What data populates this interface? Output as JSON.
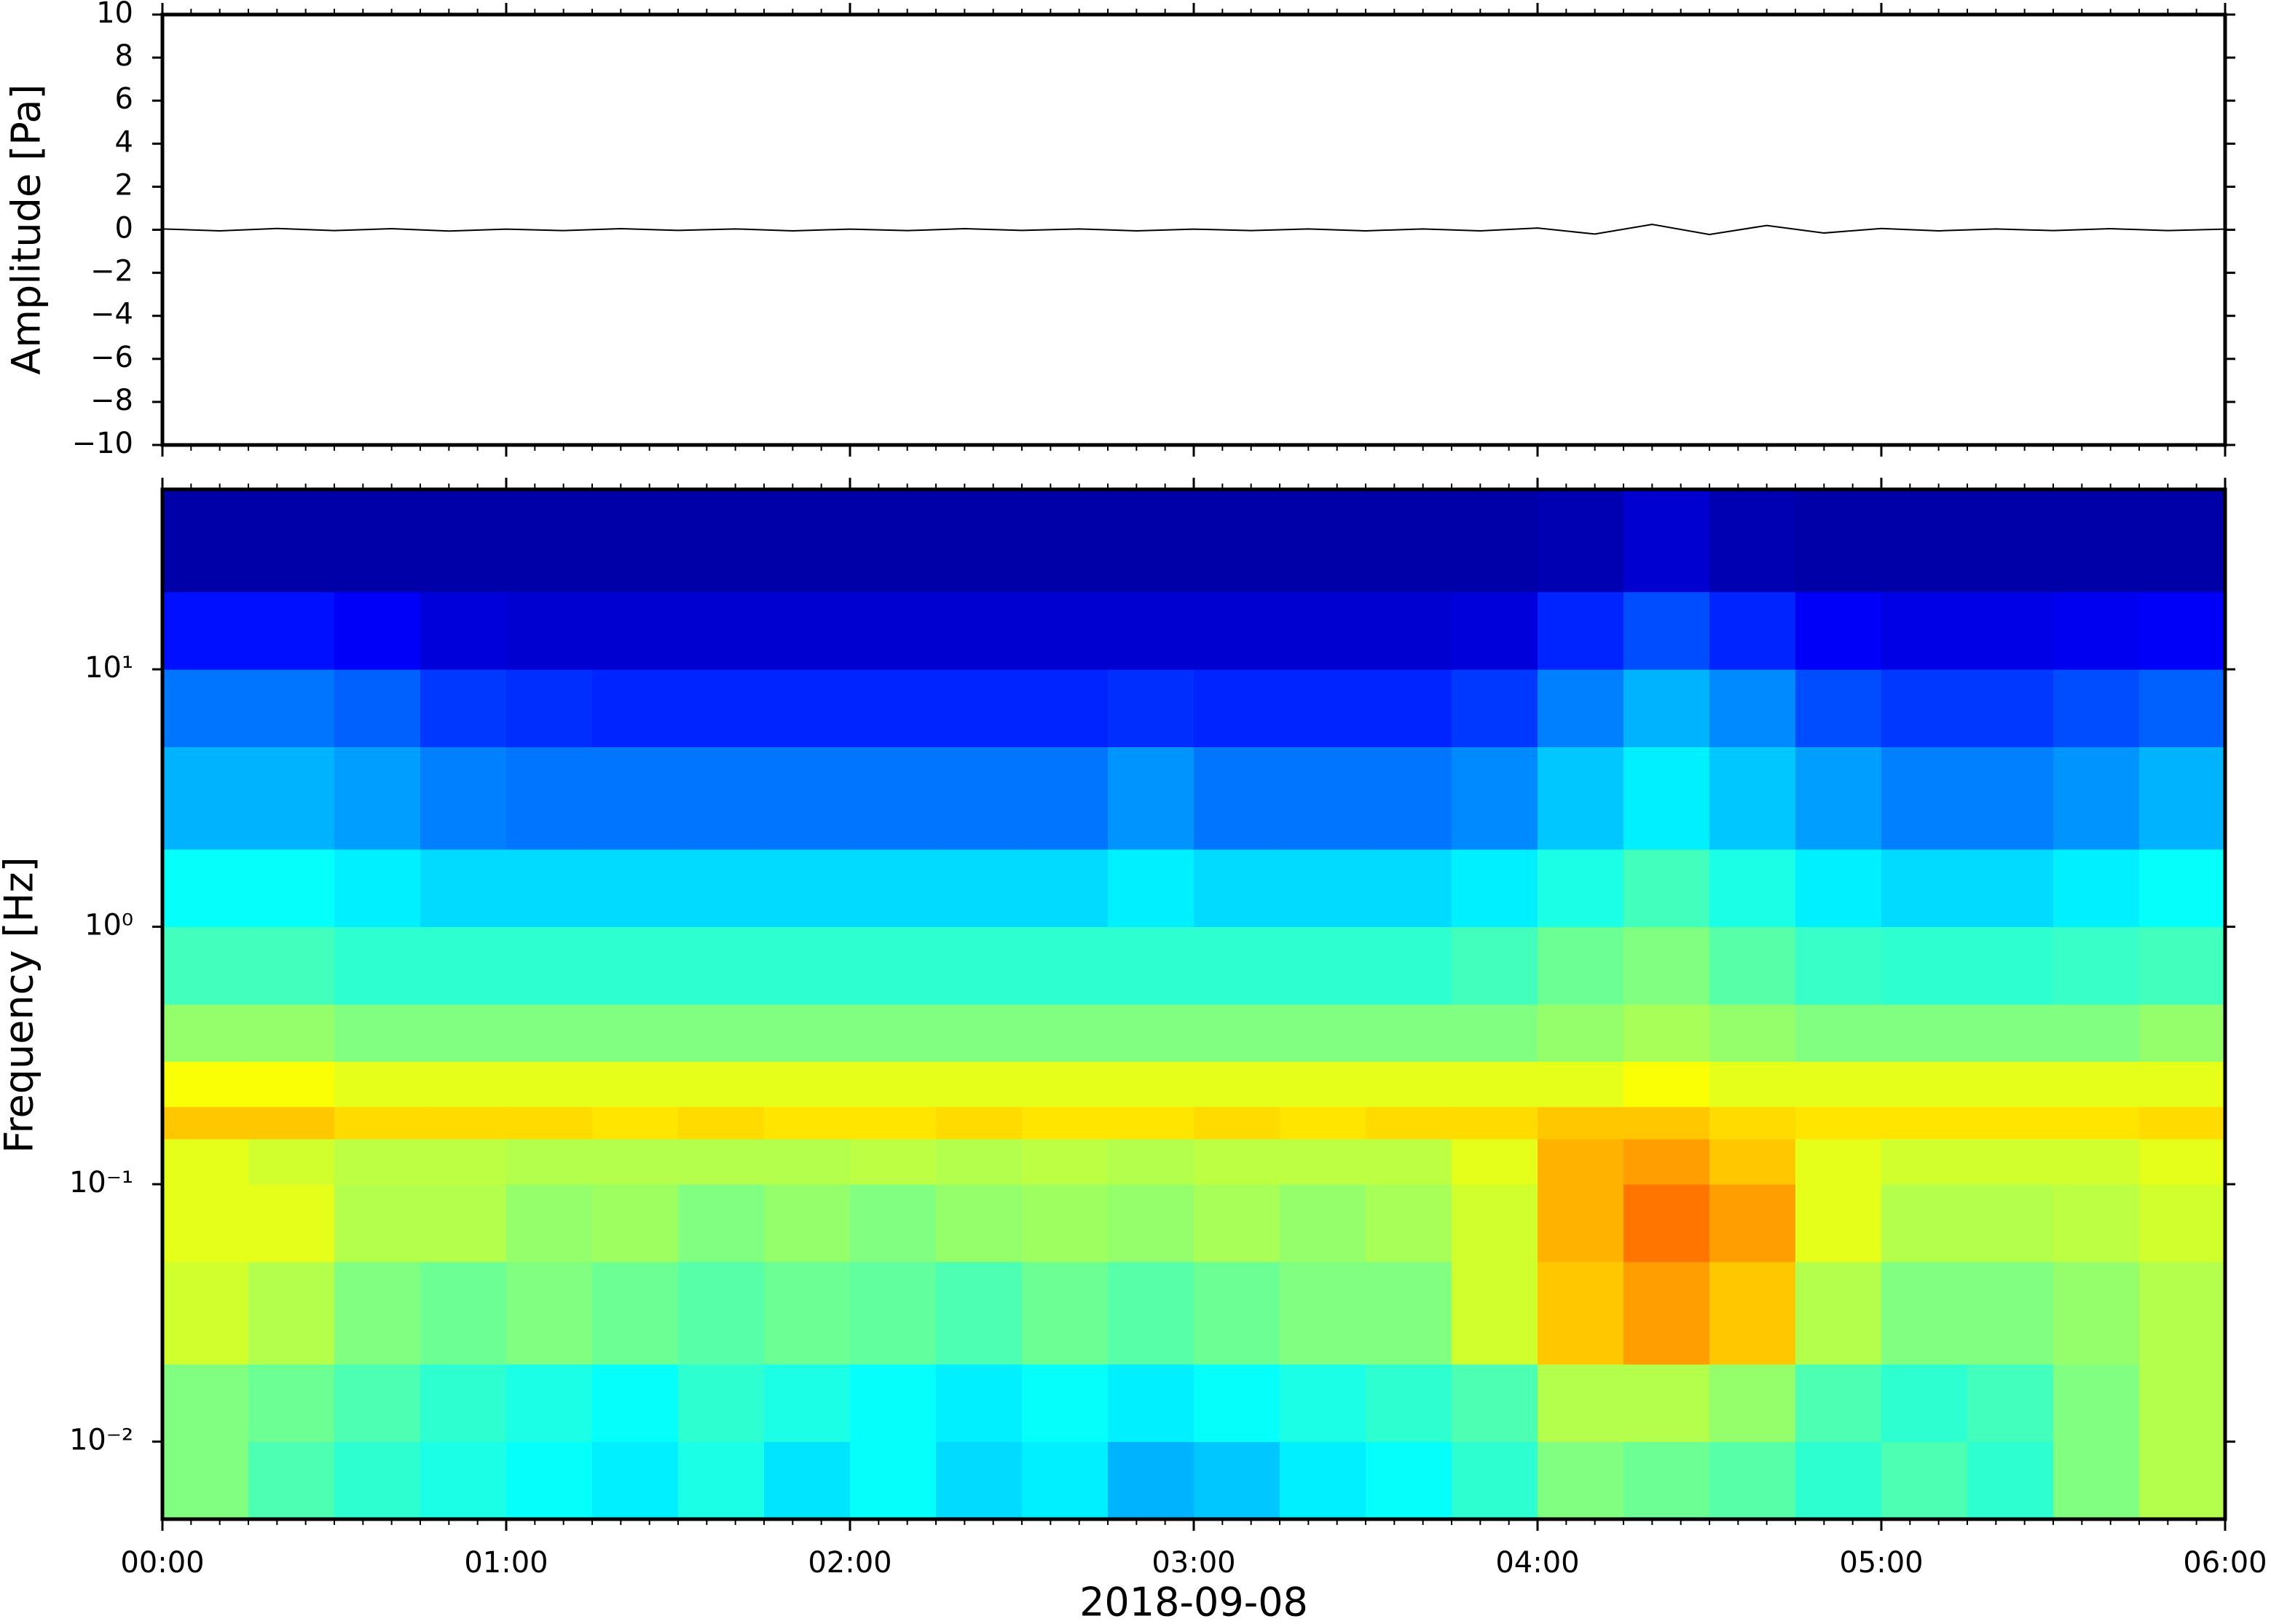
{
  "chart_data": [
    {
      "type": "line",
      "ylabel": "Amplitude [Pa]",
      "x": [
        0,
        10,
        20,
        30,
        40,
        50,
        60,
        70,
        80,
        90,
        100,
        110,
        120,
        130,
        140,
        150,
        160,
        170,
        180,
        190,
        200,
        210,
        220,
        230,
        240,
        250,
        260,
        270,
        280,
        290,
        300,
        310,
        320,
        330,
        340,
        350,
        360
      ],
      "series": [
        {
          "color": "#000000",
          "values": [
            0.04,
            -0.05,
            0.06,
            -0.04,
            0.05,
            -0.06,
            0.03,
            -0.04,
            0.05,
            -0.03,
            0.04,
            -0.05,
            0.03,
            -0.04,
            0.05,
            -0.03,
            0.04,
            -0.05,
            0.03,
            -0.04,
            0.04,
            -0.05,
            0.04,
            -0.05,
            0.08,
            -0.2,
            0.25,
            -0.22,
            0.2,
            -0.15,
            0.06,
            -0.05,
            0.04,
            -0.04,
            0.05,
            -0.04,
            0.03
          ]
        }
      ],
      "xlim": [
        0,
        360
      ],
      "xticks": [
        0,
        60,
        120,
        180,
        240,
        300,
        360
      ],
      "xminorticks": [
        5,
        10,
        15,
        20,
        25,
        30,
        35,
        40,
        45,
        50,
        55,
        65,
        70,
        75,
        80,
        85,
        90,
        95,
        100,
        105,
        110,
        115,
        125,
        130,
        135,
        140,
        145,
        150,
        155,
        160,
        165,
        170,
        175,
        185,
        190,
        195,
        200,
        205,
        210,
        215,
        220,
        225,
        230,
        235,
        245,
        250,
        255,
        260,
        265,
        270,
        275,
        280,
        285,
        290,
        295,
        305,
        310,
        315,
        320,
        325,
        330,
        335,
        340,
        345,
        350,
        355
      ],
      "ylim": [
        -10,
        10
      ],
      "yticks": [
        {
          "value": -10,
          "label": "−10"
        },
        {
          "value": -8,
          "label": "−8"
        },
        {
          "value": -6,
          "label": "−6"
        },
        {
          "value": -4,
          "label": "−4"
        },
        {
          "value": -2,
          "label": "−2"
        },
        0,
        2,
        4,
        6,
        8,
        10
      ]
    },
    {
      "type": "heatmap",
      "ylabel": "Frequency [Hz]",
      "xlabel": "2018-09-08",
      "log_y": true,
      "time_bins": [
        0,
        15,
        30,
        45,
        60,
        75,
        90,
        105,
        120,
        135,
        150,
        165,
        180,
        195,
        210,
        225,
        240,
        255,
        270,
        285,
        300,
        315,
        330,
        345,
        360
      ],
      "freq_bins": [
        0.005,
        0.01,
        0.02,
        0.05,
        0.1,
        0.15,
        0.2,
        0.3,
        0.5,
        1,
        2,
        5,
        10,
        20,
        50
      ],
      "z": [
        [
          0.5,
          0.45,
          0.42,
          0.4,
          0.38,
          0.36,
          0.4,
          0.35,
          0.38,
          0.34,
          0.36,
          0.3,
          0.32,
          0.36,
          0.38,
          0.42,
          0.5,
          0.48,
          0.46,
          0.42,
          0.45,
          0.42,
          0.5,
          0.55
        ],
        [
          0.5,
          0.48,
          0.45,
          0.42,
          0.4,
          0.38,
          0.42,
          0.4,
          0.38,
          0.36,
          0.38,
          0.36,
          0.38,
          0.4,
          0.42,
          0.45,
          0.55,
          0.55,
          0.52,
          0.45,
          0.42,
          0.44,
          0.5,
          0.55
        ],
        [
          0.58,
          0.55,
          0.5,
          0.48,
          0.5,
          0.48,
          0.46,
          0.48,
          0.47,
          0.45,
          0.48,
          0.46,
          0.48,
          0.5,
          0.5,
          0.58,
          0.68,
          0.72,
          0.68,
          0.55,
          0.5,
          0.5,
          0.52,
          0.55
        ],
        [
          0.6,
          0.6,
          0.55,
          0.55,
          0.52,
          0.53,
          0.5,
          0.52,
          0.5,
          0.52,
          0.53,
          0.52,
          0.54,
          0.52,
          0.54,
          0.58,
          0.7,
          0.76,
          0.72,
          0.6,
          0.55,
          0.55,
          0.56,
          0.58
        ],
        [
          0.6,
          0.58,
          0.56,
          0.56,
          0.55,
          0.55,
          0.55,
          0.55,
          0.56,
          0.55,
          0.56,
          0.55,
          0.56,
          0.56,
          0.56,
          0.6,
          0.7,
          0.72,
          0.68,
          0.6,
          0.58,
          0.58,
          0.58,
          0.6
        ],
        [
          0.68,
          0.68,
          0.66,
          0.66,
          0.66,
          0.65,
          0.66,
          0.65,
          0.65,
          0.66,
          0.65,
          0.65,
          0.66,
          0.65,
          0.66,
          0.66,
          0.68,
          0.68,
          0.66,
          0.65,
          0.65,
          0.65,
          0.65,
          0.66
        ],
        [
          0.62,
          0.62,
          0.6,
          0.6,
          0.6,
          0.6,
          0.6,
          0.6,
          0.6,
          0.6,
          0.6,
          0.6,
          0.6,
          0.6,
          0.6,
          0.6,
          0.6,
          0.62,
          0.6,
          0.6,
          0.6,
          0.6,
          0.6,
          0.6
        ],
        [
          0.52,
          0.52,
          0.5,
          0.5,
          0.5,
          0.5,
          0.5,
          0.5,
          0.5,
          0.5,
          0.5,
          0.5,
          0.5,
          0.5,
          0.5,
          0.5,
          0.52,
          0.54,
          0.52,
          0.5,
          0.5,
          0.5,
          0.5,
          0.52
        ],
        [
          0.44,
          0.44,
          0.42,
          0.42,
          0.42,
          0.42,
          0.42,
          0.42,
          0.42,
          0.42,
          0.42,
          0.42,
          0.42,
          0.42,
          0.42,
          0.44,
          0.48,
          0.5,
          0.46,
          0.43,
          0.42,
          0.42,
          0.43,
          0.44
        ],
        [
          0.38,
          0.38,
          0.36,
          0.34,
          0.34,
          0.34,
          0.34,
          0.34,
          0.34,
          0.34,
          0.34,
          0.36,
          0.34,
          0.34,
          0.34,
          0.36,
          0.4,
          0.44,
          0.4,
          0.36,
          0.34,
          0.34,
          0.36,
          0.38
        ],
        [
          0.3,
          0.3,
          0.28,
          0.25,
          0.24,
          0.24,
          0.24,
          0.24,
          0.24,
          0.24,
          0.24,
          0.27,
          0.24,
          0.24,
          0.24,
          0.26,
          0.32,
          0.36,
          0.32,
          0.28,
          0.25,
          0.25,
          0.27,
          0.3
        ],
        [
          0.24,
          0.24,
          0.22,
          0.18,
          0.17,
          0.16,
          0.16,
          0.16,
          0.16,
          0.16,
          0.16,
          0.17,
          0.16,
          0.16,
          0.16,
          0.18,
          0.25,
          0.3,
          0.26,
          0.2,
          0.18,
          0.18,
          0.2,
          0.22
        ],
        [
          0.14,
          0.14,
          0.12,
          0.09,
          0.08,
          0.08,
          0.08,
          0.08,
          0.08,
          0.08,
          0.08,
          0.08,
          0.08,
          0.08,
          0.08,
          0.09,
          0.16,
          0.2,
          0.16,
          0.12,
          0.1,
          0.1,
          0.11,
          0.12
        ],
        [
          0.04,
          0.04,
          0.04,
          0.04,
          0.04,
          0.04,
          0.04,
          0.04,
          0.04,
          0.04,
          0.04,
          0.04,
          0.04,
          0.04,
          0.04,
          0.04,
          0.05,
          0.08,
          0.05,
          0.04,
          0.04,
          0.04,
          0.04,
          0.04
        ]
      ],
      "xlim": [
        0,
        360
      ],
      "xticks": [
        {
          "value": 0,
          "label": "00:00"
        },
        {
          "value": 60,
          "label": "01:00"
        },
        {
          "value": 120,
          "label": "02:00"
        },
        {
          "value": 180,
          "label": "03:00"
        },
        {
          "value": 240,
          "label": "04:00"
        },
        {
          "value": 300,
          "label": "05:00"
        },
        {
          "value": 360,
          "label": "06:00"
        }
      ],
      "xminorticks": [
        5,
        10,
        15,
        20,
        25,
        30,
        35,
        40,
        45,
        50,
        55,
        65,
        70,
        75,
        80,
        85,
        90,
        95,
        100,
        105,
        110,
        115,
        125,
        130,
        135,
        140,
        145,
        150,
        155,
        160,
        165,
        170,
        175,
        185,
        190,
        195,
        200,
        205,
        210,
        215,
        220,
        225,
        230,
        235,
        245,
        250,
        255,
        260,
        265,
        270,
        275,
        280,
        285,
        290,
        295,
        305,
        310,
        315,
        320,
        325,
        330,
        335,
        340,
        345,
        350,
        355
      ],
      "ylim": [
        0.005,
        50
      ],
      "yticks": [
        {
          "value": 0.01,
          "label": "10⁻²"
        },
        {
          "value": 0.1,
          "label": "10⁻¹"
        },
        {
          "value": 1,
          "label": "10⁰"
        },
        {
          "value": 10,
          "label": "10¹"
        }
      ]
    }
  ]
}
